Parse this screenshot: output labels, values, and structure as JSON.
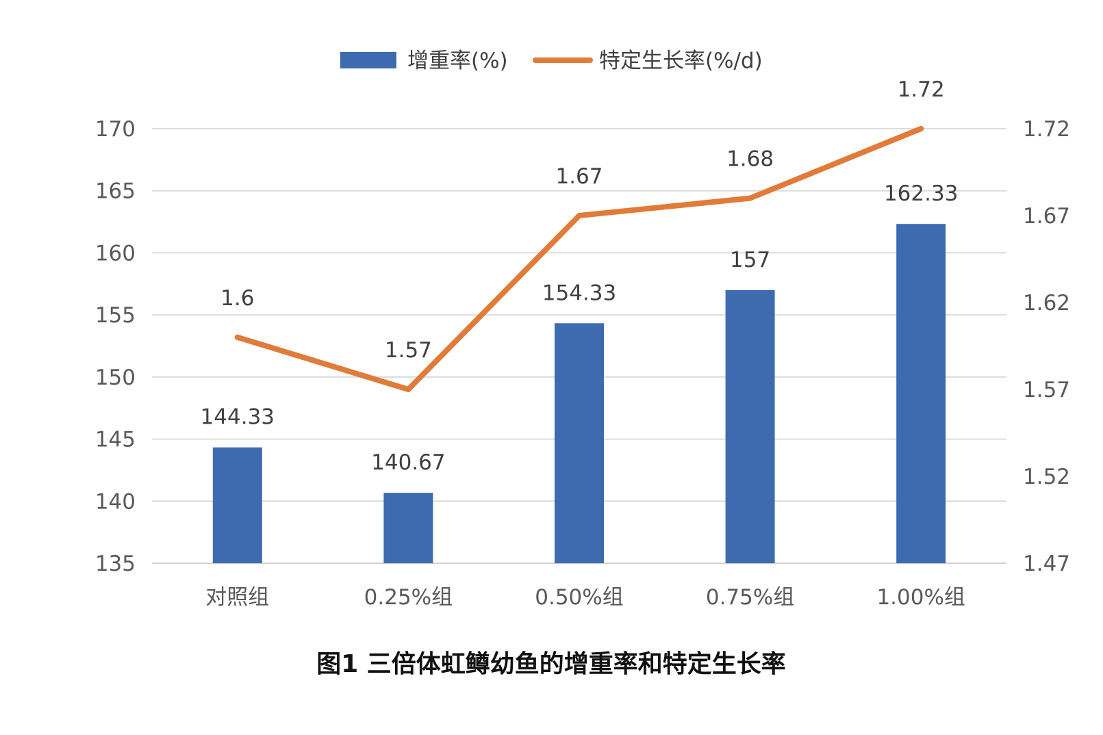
{
  "chart_data": {
    "type": "bar",
    "title": "",
    "caption": "图1 三倍体虹鳟幼鱼的增重率和特定生长率",
    "categories": [
      "对照组",
      "0.25%组",
      "0.50%组",
      "0.75%组",
      "1.00%组"
    ],
    "series": [
      {
        "name": "增重率(%)",
        "type": "bar",
        "axis": "left",
        "color": "#3E6BB0",
        "values": [
          144.33,
          140.67,
          154.33,
          157,
          162.33
        ],
        "labels": [
          "144.33",
          "140.67",
          "154.33",
          "157",
          "162.33"
        ]
      },
      {
        "name": "特定生长率(%/d)",
        "type": "line",
        "axis": "right",
        "color": "#E07B39",
        "values": [
          1.6,
          1.57,
          1.67,
          1.68,
          1.72
        ],
        "labels": [
          "1.6",
          "1.57",
          "1.67",
          "1.68",
          "1.72"
        ]
      }
    ],
    "y_left": {
      "min": 135,
      "max": 170,
      "step": 5,
      "ticks": [
        "135",
        "140",
        "145",
        "150",
        "155",
        "160",
        "165",
        "170"
      ]
    },
    "y_right": {
      "min": 1.47,
      "max": 1.72,
      "step": 0.05,
      "ticks": [
        "1.47",
        "1.52",
        "1.57",
        "1.62",
        "1.67",
        "1.72"
      ]
    },
    "grid": true,
    "legend": "top-center"
  }
}
